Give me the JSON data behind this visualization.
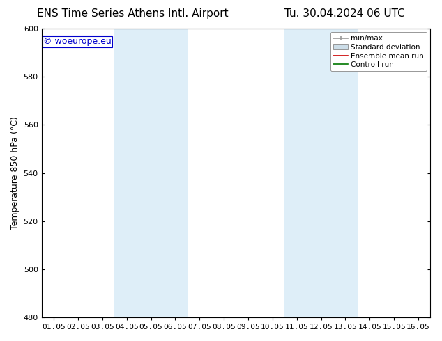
{
  "title_left": "ENS Time Series Athens Intl. Airport",
  "title_right": "Tu. 30.04.2024 06 UTC",
  "ylabel": "Temperature 850 hPa (°C)",
  "watermark": "© woeurope.eu",
  "watermark_color": "#0000cc",
  "ylim": [
    480,
    600
  ],
  "yticks": [
    480,
    500,
    520,
    540,
    560,
    580,
    600
  ],
  "xtick_labels": [
    "01.05",
    "02.05",
    "03.05",
    "04.05",
    "05.05",
    "06.05",
    "07.05",
    "08.05",
    "09.05",
    "10.05",
    "11.05",
    "12.05",
    "13.05",
    "14.05",
    "15.05",
    "16.05"
  ],
  "shaded_regions": [
    {
      "xstart": 3,
      "xend": 5,
      "color": "#deeef8"
    },
    {
      "xstart": 10,
      "xend": 12,
      "color": "#deeef8"
    }
  ],
  "legend_entries": [
    {
      "label": "min/max",
      "type": "minmax",
      "color": "#999999"
    },
    {
      "label": "Standard deviation",
      "type": "box",
      "color": "#ccdde8"
    },
    {
      "label": "Ensemble mean run",
      "type": "line",
      "color": "#cc0000"
    },
    {
      "label": "Controll run",
      "type": "line",
      "color": "#007700"
    }
  ],
  "background_color": "#ffffff",
  "title_fontsize": 11,
  "axis_fontsize": 9,
  "tick_fontsize": 8,
  "watermark_fontsize": 9,
  "legend_fontsize": 7.5
}
